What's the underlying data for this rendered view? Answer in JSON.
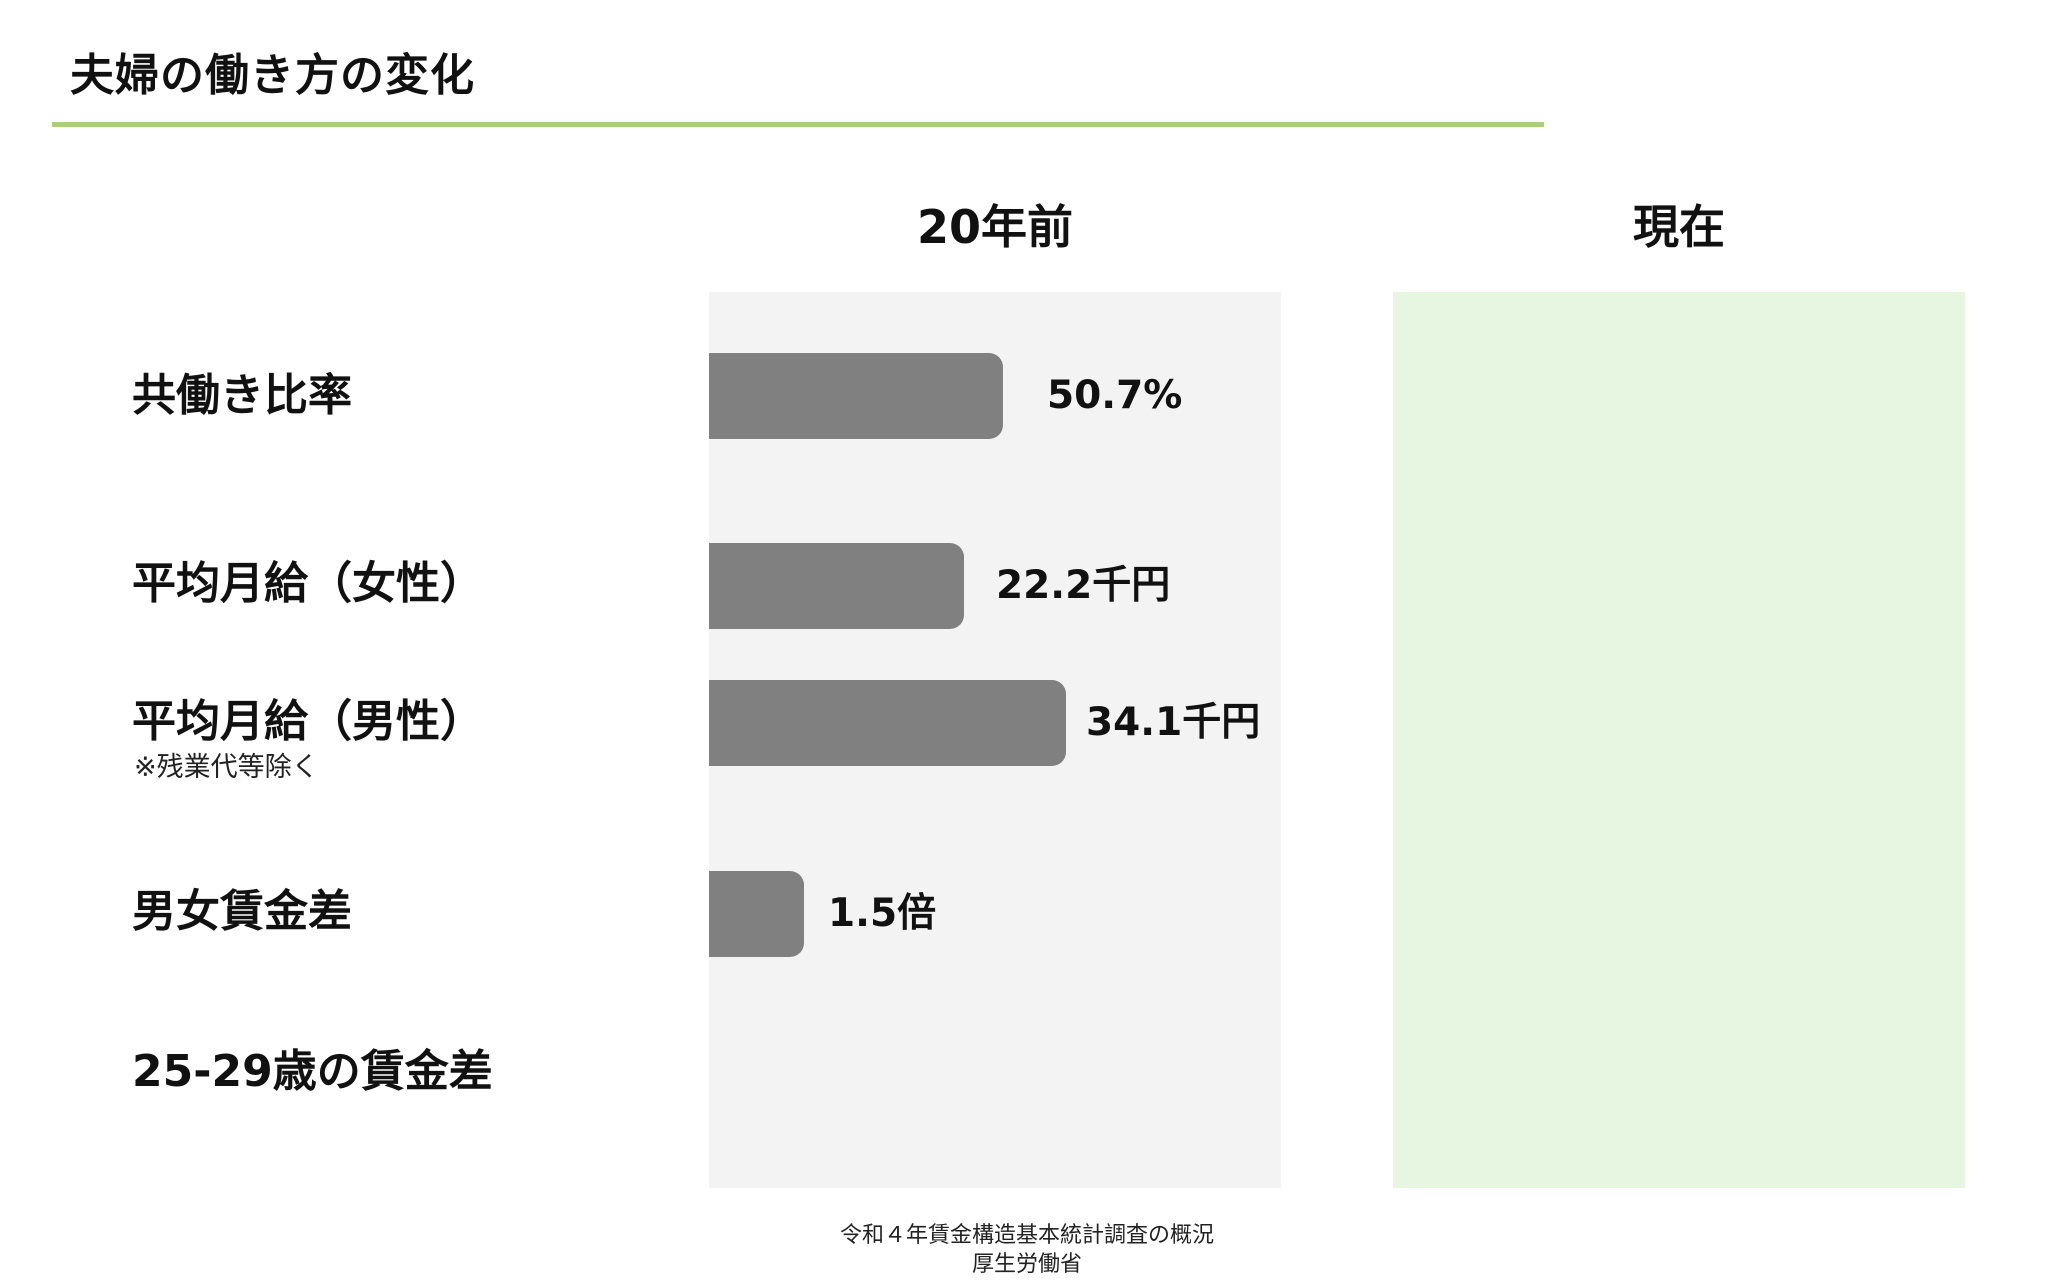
{
  "title": "夫婦の働き方の変化",
  "colors": {
    "accent_rule": "#a9cf7c",
    "past_panel": "#f3f3f3",
    "current_panel": "#e7f6e1",
    "bar": "#808080"
  },
  "columns": {
    "past": "20年前",
    "current": "現在"
  },
  "rows": [
    {
      "label": "共働き比率",
      "note": ""
    },
    {
      "label": "平均月給（女性）",
      "note": ""
    },
    {
      "label": "平均月給（男性）",
      "note": "※残業代等除く"
    },
    {
      "label": "男女賃金差",
      "note": ""
    },
    {
      "label": "25-29歳の賃金差",
      "note": ""
    }
  ],
  "chart_data": {
    "type": "bar",
    "orientation": "horizontal",
    "title": "夫婦の働き方の変化",
    "categories": [
      "共働き比率",
      "平均月給（女性）",
      "平均月給（男性）",
      "男女賃金差",
      "25-29歳の賃金差"
    ],
    "series": [
      {
        "name": "20年前",
        "values": [
          50.7,
          22.2,
          34.1,
          1.5,
          null
        ],
        "labels": [
          "50.7%",
          "22.2千円",
          "34.1千円",
          "1.5倍",
          ""
        ]
      },
      {
        "name": "現在",
        "values": [
          null,
          null,
          null,
          null,
          null
        ],
        "labels": [
          "",
          "",
          "",
          "",
          ""
        ]
      }
    ],
    "grid": false
  },
  "source": {
    "line1": "令和４年賃金構造基本統計調査の概況",
    "line2": "厚生労働省"
  }
}
